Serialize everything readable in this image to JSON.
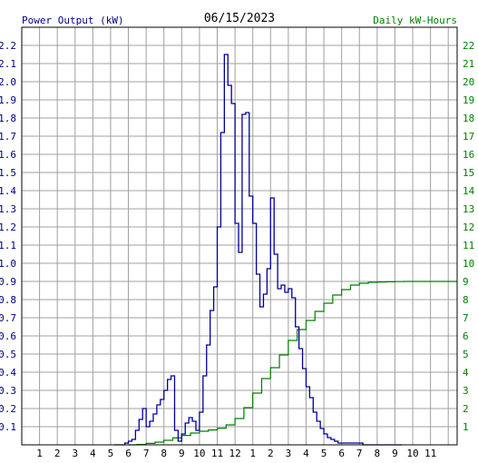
{
  "chart_data": {
    "type": "line",
    "title": "06/15/2023",
    "ylabel_left": "Power Output (kW)",
    "ylabel_right": "Daily kW-Hours",
    "x_tick_labels": [
      "1",
      "2",
      "3",
      "4",
      "5",
      "6",
      "7",
      "8",
      "9",
      "10",
      "11",
      "12",
      "1",
      "2",
      "3",
      "4",
      "5",
      "6",
      "7",
      "8",
      "9",
      "10",
      "11"
    ],
    "y_left_tick_labels": [
      "0.1",
      "0.2",
      "0.3",
      "0.4",
      "0.5",
      "0.6",
      "0.7",
      "0.8",
      "0.9",
      "1.0",
      "1.1",
      "1.2",
      "1.3",
      "1.4",
      "1.5",
      "1.6",
      "1.7",
      "1.8",
      "1.9",
      "2.0",
      "2.1",
      "2.2"
    ],
    "y_right_tick_labels": [
      "1",
      "2",
      "3",
      "4",
      "5",
      "6",
      "7",
      "8",
      "9",
      "10",
      "11",
      "12",
      "13",
      "14",
      "15",
      "16",
      "17",
      "18",
      "19",
      "20",
      "21",
      "22"
    ],
    "ylim_left": [
      0,
      2.3
    ],
    "ylim_right": [
      0,
      23
    ],
    "xlim_hours": [
      0,
      24.5
    ],
    "grid": true,
    "colors": {
      "power": "#000099",
      "energy": "#008000",
      "grid": "#a0a0a0",
      "left_labels": "#000080",
      "right_labels": "#008000"
    },
    "series": [
      {
        "name": "Power Output (kW)",
        "axis": "left",
        "x": [
          5.2,
          5.4,
          5.6,
          5.8,
          6.0,
          6.2,
          6.4,
          6.6,
          6.8,
          7.0,
          7.2,
          7.4,
          7.6,
          7.8,
          8.0,
          8.2,
          8.4,
          8.6,
          8.8,
          9.0,
          9.2,
          9.4,
          9.6,
          9.8,
          10.0,
          10.2,
          10.4,
          10.6,
          10.8,
          11.0,
          11.2,
          11.4,
          11.6,
          11.8,
          12.0,
          12.2,
          12.4,
          12.6,
          12.8,
          13.0,
          13.2,
          13.4,
          13.6,
          13.8,
          14.0,
          14.2,
          14.4,
          14.6,
          14.8,
          15.0,
          15.2,
          15.4,
          15.6,
          15.8,
          16.0,
          16.2,
          16.4,
          16.6,
          16.8,
          17.0,
          17.2,
          17.4,
          17.6,
          17.8,
          18.0,
          18.2,
          18.4,
          18.6,
          18.8,
          19.0,
          19.2,
          19.4,
          19.6,
          19.8,
          20.0,
          20.2,
          20.4,
          20.6,
          20.8,
          21.0,
          21.2,
          21.4
        ],
        "values": [
          0.0,
          0.0,
          0.0,
          0.01,
          0.02,
          0.03,
          0.08,
          0.14,
          0.2,
          0.1,
          0.13,
          0.17,
          0.22,
          0.25,
          0.3,
          0.36,
          0.38,
          0.08,
          0.02,
          0.06,
          0.12,
          0.15,
          0.13,
          0.08,
          0.18,
          0.38,
          0.55,
          0.74,
          0.87,
          1.2,
          1.72,
          2.15,
          1.98,
          1.88,
          1.22,
          1.06,
          1.82,
          1.83,
          1.37,
          1.22,
          0.94,
          0.76,
          0.83,
          0.97,
          1.36,
          1.05,
          0.86,
          0.88,
          0.84,
          0.86,
          0.81,
          0.65,
          0.53,
          0.42,
          0.32,
          0.26,
          0.18,
          0.13,
          0.09,
          0.06,
          0.04,
          0.03,
          0.02,
          0.01,
          0.01,
          0.01,
          0.01,
          0.01,
          0.01,
          0.01,
          0.0,
          0.0,
          0.0,
          0.0,
          0.0,
          0.0,
          0.0,
          0.0,
          0.0,
          0.0,
          0.0,
          0.0
        ]
      },
      {
        "name": "Daily kW-Hours",
        "axis": "right",
        "x": [
          6.0,
          6.5,
          7.0,
          7.5,
          8.0,
          8.5,
          9.0,
          9.5,
          10.0,
          10.5,
          11.0,
          11.5,
          12.0,
          12.5,
          13.0,
          13.5,
          14.0,
          14.5,
          15.0,
          15.5,
          16.0,
          16.5,
          17.0,
          17.5,
          18.0,
          18.5,
          19.0,
          19.5,
          20.0,
          20.5,
          21.0,
          21.5,
          22.0,
          23.0,
          24.0,
          24.5
        ],
        "values": [
          0.0,
          0.02,
          0.08,
          0.15,
          0.25,
          0.38,
          0.52,
          0.65,
          0.75,
          0.82,
          0.92,
          1.1,
          1.45,
          2.05,
          2.85,
          3.65,
          4.25,
          4.95,
          5.75,
          6.35,
          6.85,
          7.35,
          7.8,
          8.25,
          8.55,
          8.8,
          8.9,
          8.95,
          8.97,
          8.98,
          8.99,
          9.0,
          9.0,
          9.0,
          9.0,
          9.0
        ]
      }
    ]
  }
}
